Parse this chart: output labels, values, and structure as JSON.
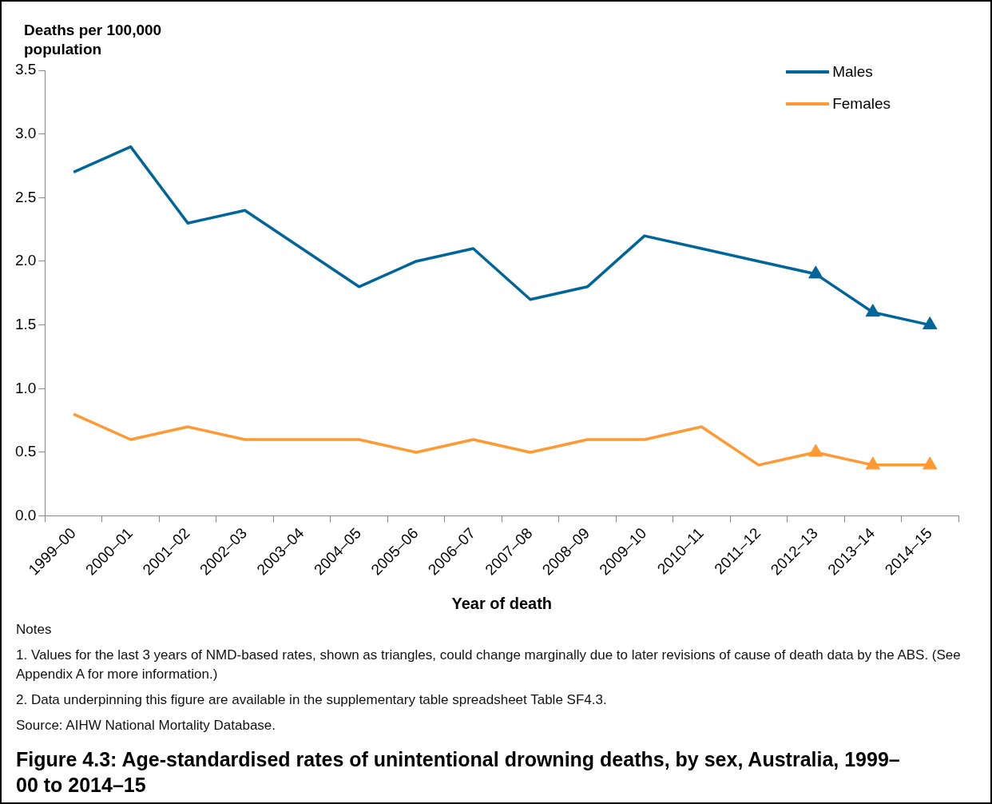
{
  "chart_data": {
    "type": "line",
    "title": "Figure 4.3: Age-standardised rates of unintentional drowning deaths, by sex, Australia, 1999–00 to 2014–15",
    "xlabel": "Year of death",
    "ylabel": "Deaths per 100,000 population",
    "categories": [
      "1999–00",
      "2000–01",
      "2001–02",
      "2002–03",
      "2003–04",
      "2004–05",
      "2005–06",
      "2006–07",
      "2007–08",
      "2008–09",
      "2009–10",
      "2010–11",
      "2011–12",
      "2012–13",
      "2013–14",
      "2014–15"
    ],
    "series": [
      {
        "name": "Males",
        "color": "#006699",
        "values": [
          2.7,
          2.9,
          2.3,
          2.4,
          2.1,
          1.8,
          2.0,
          2.1,
          1.7,
          1.8,
          2.2,
          2.1,
          2.0,
          1.9,
          1.6,
          1.5
        ]
      },
      {
        "name": "Females",
        "color": "#ff9933",
        "values": [
          0.8,
          0.6,
          0.7,
          0.6,
          0.6,
          0.6,
          0.5,
          0.6,
          0.5,
          0.6,
          0.6,
          0.7,
          0.4,
          0.5,
          0.4,
          0.4
        ]
      },
      {
        "type": "scatter",
        "marker": "triangle",
        "color": "#006699",
        "x": [
          "2012–13",
          "2013–14",
          "2014–15"
        ],
        "values": [
          1.9,
          1.6,
          1.5
        ]
      },
      {
        "type": "scatter",
        "marker": "triangle",
        "color": "#ff9933",
        "x": [
          "2012–13",
          "2013–14",
          "2014–15"
        ],
        "values": [
          0.5,
          0.4,
          0.4
        ]
      }
    ],
    "ylim": [
      0,
      3.5
    ],
    "yticks": [
      {
        "value": 0,
        "label": "0.0"
      },
      {
        "value": 0.5,
        "label": "0.5"
      },
      {
        "value": 1,
        "label": "1.0"
      },
      {
        "value": 1.5,
        "label": "1.5"
      },
      {
        "value": 2,
        "label": "2.0"
      },
      {
        "value": 2.5,
        "label": "2.5"
      },
      {
        "value": 3,
        "label": "3.0"
      },
      {
        "value": 3.5,
        "label": "3.5"
      }
    ],
    "grid": false,
    "legend": "top right",
    "marker": "none",
    "annotations": [
      "Notes",
      "1. Values for the last 3 years of NMD-based rates, shown as triangles, could change marginally due to later revisions of cause of death data by the ABS. (See Appendix A for more information.)",
      "2. Data underpinning this figure are available in the supplementary table spreadsheet Table SF4.3.",
      "Source: AIHW National Mortality Database."
    ]
  }
}
